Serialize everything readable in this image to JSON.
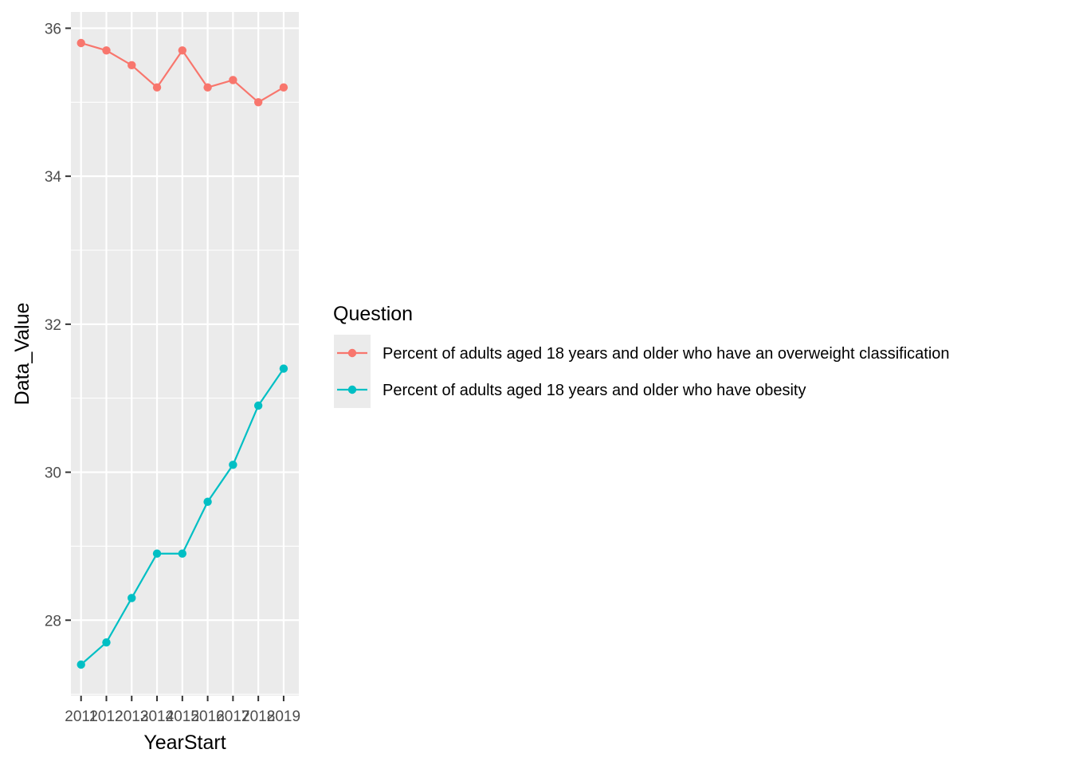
{
  "chart_data": {
    "type": "line",
    "x": [
      2011,
      2012,
      2013,
      2014,
      2015,
      2016,
      2017,
      2018,
      2019
    ],
    "x_tick_labels": [
      "2011",
      "2012",
      "2013",
      "2014",
      "2015",
      "2016",
      "2017",
      "2018",
      "2019"
    ],
    "series": [
      {
        "name": "Percent of adults aged 18 years and older who have an overweight classification",
        "color": "#F8766D",
        "values": [
          35.8,
          35.7,
          35.5,
          35.2,
          35.7,
          35.2,
          35.3,
          35.0,
          35.2
        ]
      },
      {
        "name": "Percent of adults aged 18 years and older who have obesity",
        "color": "#00BFC4",
        "values": [
          27.4,
          27.7,
          28.3,
          28.9,
          28.9,
          29.6,
          30.1,
          30.9,
          31.4
        ]
      }
    ],
    "xlabel": "YearStart",
    "ylabel": "Data_Value",
    "y_ticks": [
      "28",
      "30",
      "32",
      "34",
      "36"
    ],
    "ylim": [
      26.98,
      36.22
    ],
    "xlim": [
      2010.6,
      2019.6
    ],
    "legend_title": "Question",
    "legend_position": "right",
    "grid": true,
    "panel_background": "#EBEBEB",
    "grid_color": "#FFFFFF"
  }
}
